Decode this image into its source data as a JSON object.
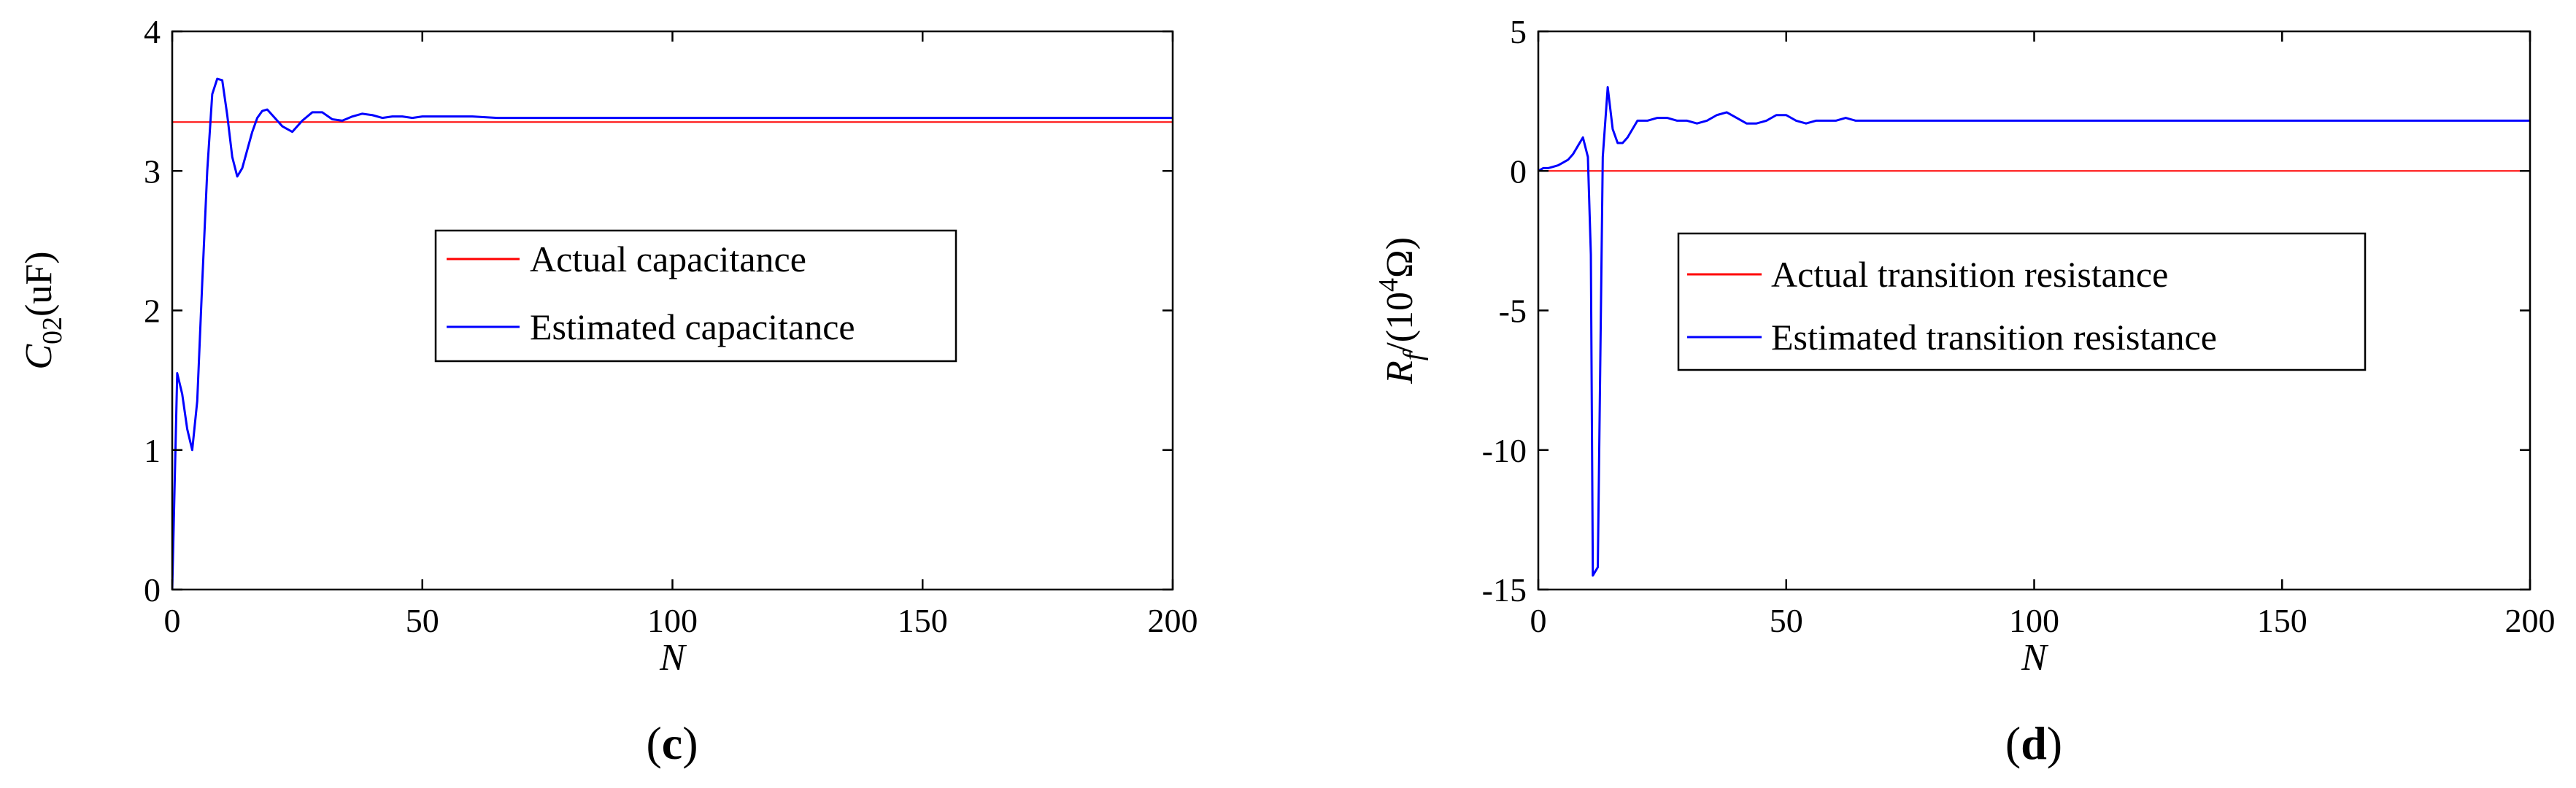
{
  "chart_data": [
    {
      "type": "line",
      "panel_label": {
        "open": "(",
        "letter": "c",
        "close": ")"
      },
      "xlabel": "N",
      "ylabel": {
        "symbol": "C",
        "subscript": "02",
        "unit": "(uF)"
      },
      "xlim": [
        0,
        200
      ],
      "ylim": [
        0,
        4
      ],
      "xticks": [
        0,
        50,
        100,
        150,
        200
      ],
      "yticks": [
        0,
        1,
        2,
        3,
        4
      ],
      "grid": false,
      "legend_position": "center",
      "series": [
        {
          "name": "Actual capacitance",
          "color": "#ff0000",
          "x": [
            0,
            200
          ],
          "y": [
            3.35,
            3.35
          ]
        },
        {
          "name": "Estimated capacitance",
          "color": "#0000ff",
          "x": [
            0,
            1,
            2,
            3,
            4,
            5,
            6,
            7,
            8,
            9,
            10,
            11,
            12,
            13,
            14,
            15,
            16,
            17,
            18,
            19,
            20,
            22,
            24,
            26,
            28,
            30,
            32,
            34,
            36,
            38,
            40,
            42,
            44,
            46,
            48,
            50,
            55,
            60,
            65,
            70,
            80,
            100,
            150,
            200
          ],
          "y": [
            0,
            1.55,
            1.4,
            1.15,
            1.0,
            1.35,
            2.2,
            3.0,
            3.55,
            3.66,
            3.65,
            3.4,
            3.1,
            2.96,
            3.02,
            3.15,
            3.28,
            3.38,
            3.43,
            3.44,
            3.4,
            3.32,
            3.28,
            3.36,
            3.42,
            3.42,
            3.37,
            3.36,
            3.39,
            3.41,
            3.4,
            3.38,
            3.39,
            3.39,
            3.38,
            3.39,
            3.39,
            3.39,
            3.38,
            3.38,
            3.38,
            3.38,
            3.38,
            3.38
          ]
        }
      ]
    },
    {
      "type": "line",
      "panel_label": {
        "open": "(",
        "letter": "d",
        "close": ")"
      },
      "xlabel": "N",
      "ylabel": {
        "symbol": "R",
        "subscript": "f",
        "unit_pre": "/(10",
        "superscript": "4",
        "unit_post": "Ω)"
      },
      "xlim": [
        0,
        200
      ],
      "ylim": [
        -15,
        5
      ],
      "xticks": [
        0,
        50,
        100,
        150,
        200
      ],
      "yticks": [
        -15,
        -10,
        -5,
        0,
        5
      ],
      "grid": false,
      "legend_position": "center-right",
      "series": [
        {
          "name": "Actual transition resistance",
          "color": "#ff0000",
          "x": [
            0,
            200
          ],
          "y": [
            0,
            0
          ]
        },
        {
          "name": "Estimated transition resistance",
          "color": "#0000ff",
          "x": [
            0,
            1,
            2,
            3,
            4,
            5,
            6,
            7,
            8,
            9,
            10,
            10.6,
            11,
            12,
            13,
            14,
            15,
            16,
            17,
            18,
            19,
            20,
            22,
            24,
            26,
            28,
            30,
            32,
            34,
            36,
            38,
            40,
            42,
            44,
            46,
            48,
            50,
            52,
            54,
            56,
            58,
            60,
            62,
            64,
            66,
            68,
            70,
            80,
            100,
            150,
            200
          ],
          "y": [
            0,
            0.1,
            0.1,
            0.15,
            0.2,
            0.3,
            0.4,
            0.6,
            0.9,
            1.2,
            0.5,
            -3,
            -14.5,
            -14.2,
            0.5,
            3.0,
            1.5,
            1.0,
            1.0,
            1.2,
            1.5,
            1.8,
            1.8,
            1.9,
            1.9,
            1.8,
            1.8,
            1.7,
            1.8,
            2.0,
            2.1,
            1.9,
            1.7,
            1.7,
            1.8,
            2.0,
            2.0,
            1.8,
            1.7,
            1.8,
            1.8,
            1.8,
            1.9,
            1.8,
            1.8,
            1.8,
            1.8,
            1.8,
            1.8,
            1.8,
            1.8
          ]
        }
      ]
    }
  ]
}
